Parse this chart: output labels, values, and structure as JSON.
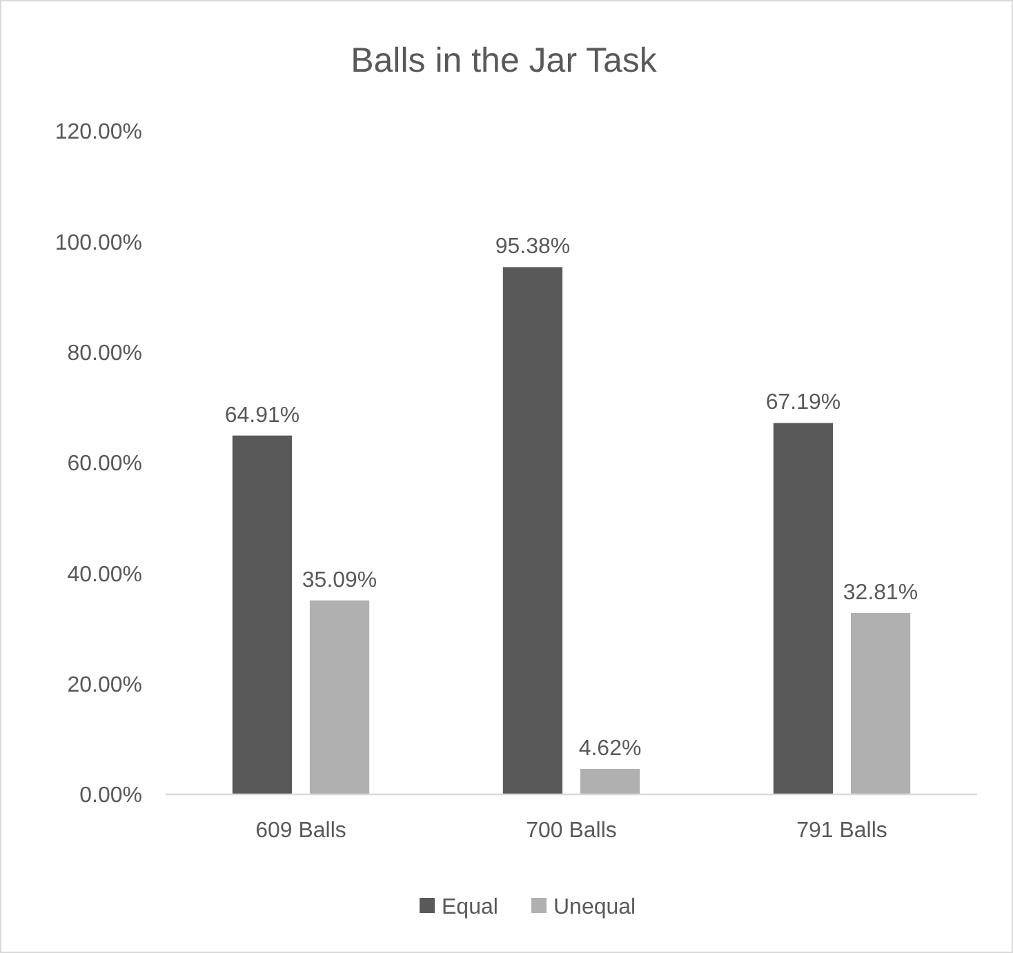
{
  "chart_data": {
    "type": "bar",
    "title": "Balls in the Jar Task",
    "categories": [
      "609 Balls",
      "700 Balls",
      "791 Balls"
    ],
    "series": [
      {
        "name": "Equal",
        "color": "#595959",
        "values": [
          64.91,
          95.38,
          67.19
        ],
        "value_labels": [
          "64.91%",
          "95.38%",
          "67.19%"
        ]
      },
      {
        "name": "Unequal",
        "color": "#b0b0b0",
        "values": [
          35.09,
          4.62,
          32.81
        ],
        "value_labels": [
          "35.09%",
          "4.62%",
          "32.81%"
        ]
      }
    ],
    "ylim": [
      0,
      120
    ],
    "yticks": [
      {
        "value": 0,
        "label": "0.00%"
      },
      {
        "value": 20,
        "label": "20.00%"
      },
      {
        "value": 40,
        "label": "40.00%"
      },
      {
        "value": 60,
        "label": "60.00%"
      },
      {
        "value": 80,
        "label": "80.00%"
      },
      {
        "value": 100,
        "label": "100.00%"
      },
      {
        "value": 120,
        "label": "120.00%"
      }
    ],
    "grid": false,
    "legend": "bottom"
  }
}
